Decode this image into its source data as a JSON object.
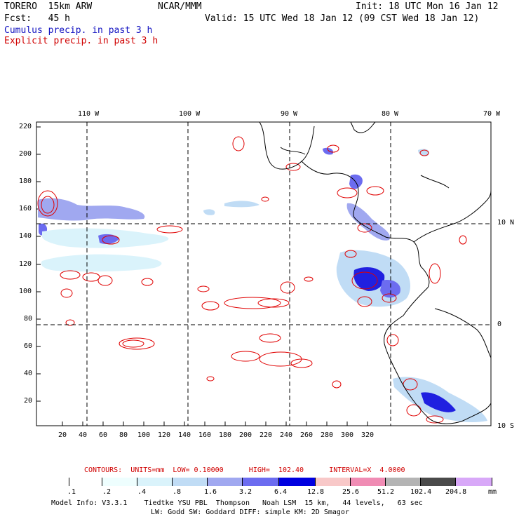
{
  "header": {
    "model": "TORERO  15km ARW",
    "org": "NCAR/MMM",
    "init": "Init: 18 UTC Mon 16 Jan 12",
    "fcst": "Fcst:   45 h",
    "valid": "Valid: 15 UTC Wed 18 Jan 12 (09 CST Wed 18 Jan 12)",
    "cumulus": "Cumulus precip. in past 3 h",
    "explicit": "Explicit precip. in past 3 h"
  },
  "colors": {
    "cumulus_text": "#1010c0",
    "explicit_text": "#d00000",
    "contour": "#e00000",
    "coastline": "#000000"
  },
  "map": {
    "lon_labels": [
      "110 W",
      "100 W",
      "90 W",
      "80 W",
      "70 W"
    ],
    "lat_labels": [
      "10 N",
      "0",
      "10 S"
    ],
    "x_ticks": [
      "20",
      "40",
      "60",
      "80",
      "100",
      "120",
      "140",
      "160",
      "180",
      "200",
      "220",
      "240",
      "260",
      "280",
      "300",
      "320"
    ],
    "y_ticks": [
      "220",
      "200",
      "180",
      "160",
      "140",
      "120",
      "100",
      "80",
      "60",
      "40",
      "20"
    ]
  },
  "legend": {
    "contours_text": "CONTOURS:  UNITS=mm  LOW= 0.10000      HIGH=  102.40      INTERVAL=X  4.0000",
    "labels": [
      ".1",
      ".2",
      ".4",
      ".8",
      "1.6",
      "3.2",
      "6.4",
      "12.8",
      "25.6",
      "51.2",
      "102.4",
      "204.8"
    ],
    "unit": "mm",
    "colors": [
      "#ffffff",
      "#ffffff",
      "#eefefe",
      "#daf3fb",
      "#c0dcf5",
      "#a0a8f0",
      "#6c6cf0",
      "#2020e0",
      "#0000c8",
      "#f8c8c8",
      "#f08cb4",
      "#b4b4b4",
      "#4a4a4a",
      "#d8a8f8"
    ]
  },
  "footer": {
    "line1": "Model Info: V3.3.1    Tiedtke YSU PBL  Thompson   Noah LSM  15 km,   44 levels,   63 sec",
    "line2": "LW: Godd SW: Goddard DIFF: simple KM: 2D Smagor"
  }
}
